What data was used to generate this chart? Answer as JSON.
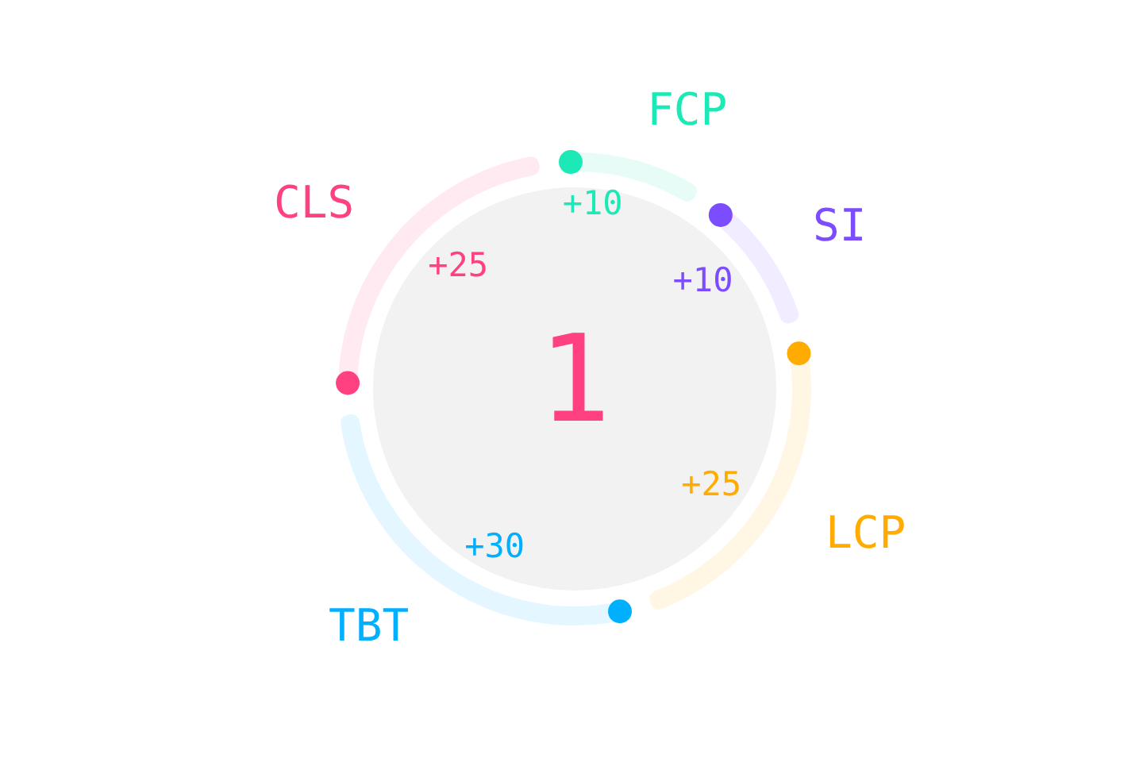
{
  "chart_data": {
    "type": "donut",
    "categories": [
      "FCP",
      "SI",
      "LCP",
      "TBT",
      "CLS"
    ],
    "values": [
      10,
      10,
      25,
      30,
      25
    ],
    "colors": [
      "#1de9b6",
      "#7c4dff",
      "#ffab00",
      "#00b0ff",
      "#ff4081"
    ],
    "value_labels": [
      "+10",
      "+10",
      "+25",
      "+30",
      "+25"
    ],
    "annotations": [
      "1"
    ]
  }
}
